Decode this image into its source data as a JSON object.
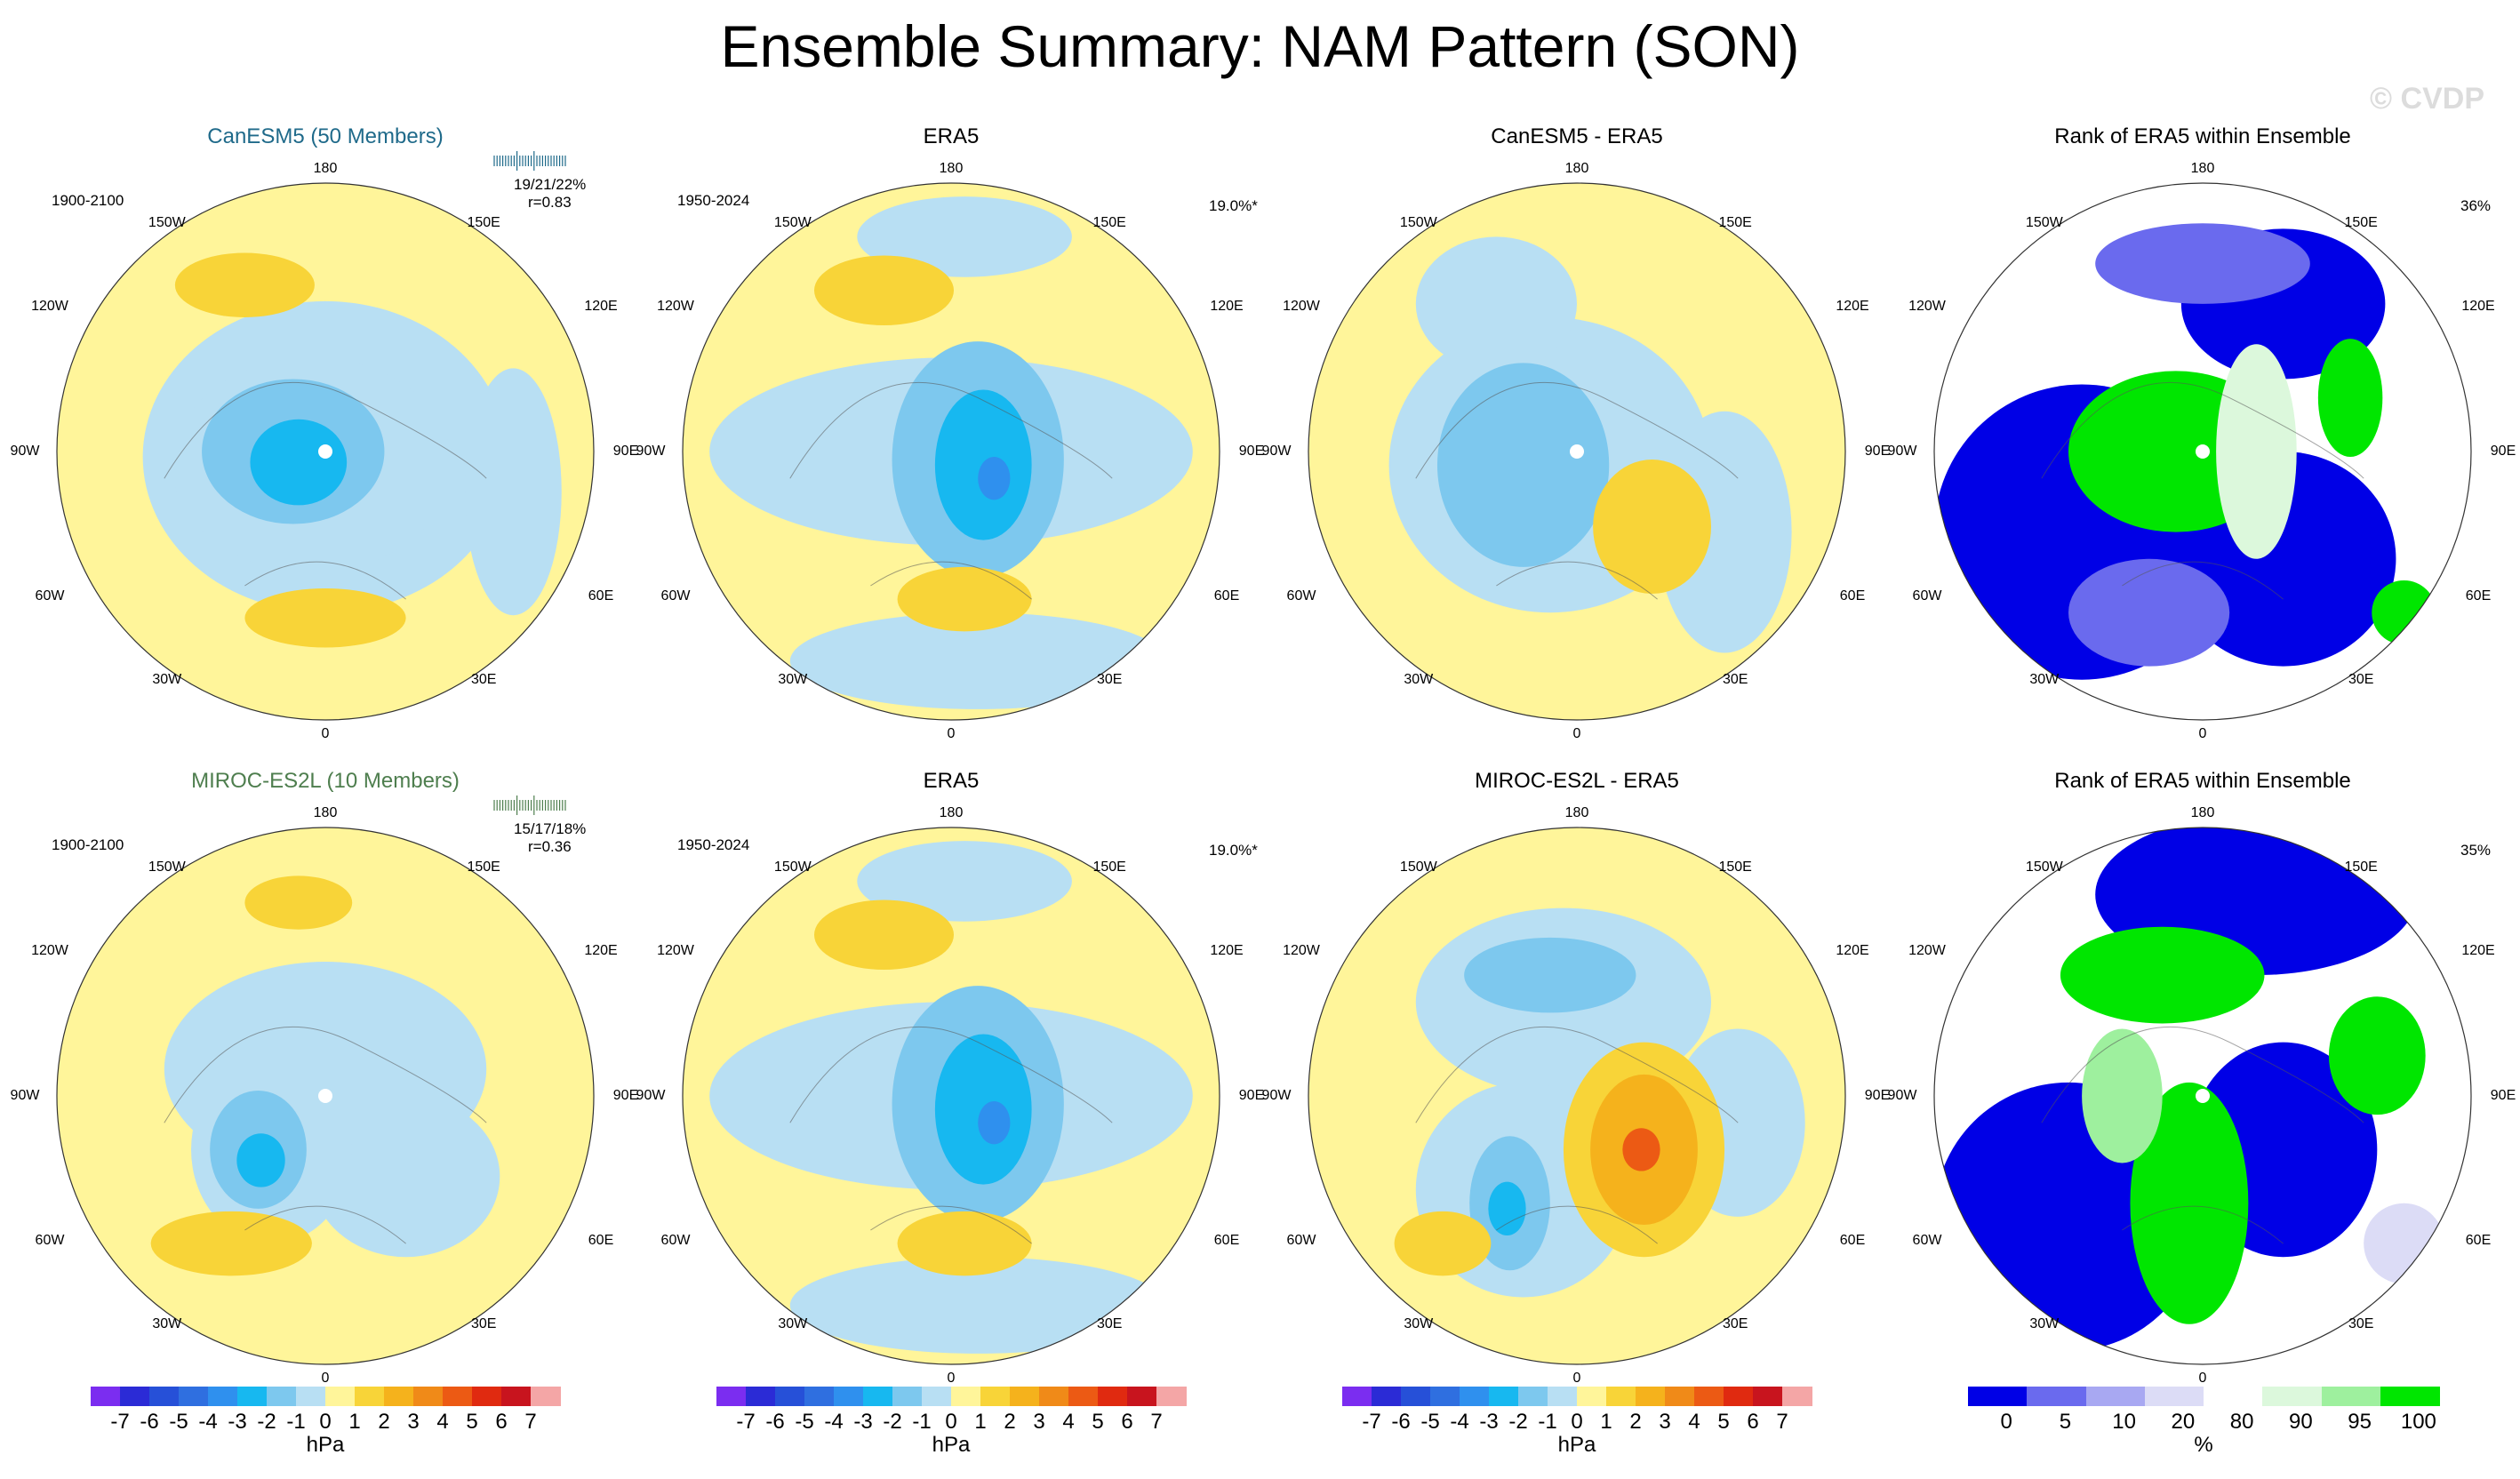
{
  "title": "Ensemble Summary: NAM Pattern (SON)",
  "watermark": "© CVDP",
  "map_labels": {
    "top": "180",
    "bottom": "0",
    "left": "90W",
    "right": "90E",
    "ul": "150W",
    "ur": "150E",
    "ull": "120W",
    "urr": "120E",
    "ll": "60W",
    "lr": "60E",
    "lll": "30W",
    "lrr": "30E"
  },
  "colorbars": {
    "hpa": {
      "unit": "hPa",
      "ticks": [
        "-7",
        "-6",
        "-5",
        "-4",
        "-3",
        "-2",
        "-1",
        "0",
        "1",
        "2",
        "3",
        "4",
        "5",
        "6",
        "7"
      ],
      "colors": [
        "#7b2df0",
        "#2b2bd6",
        "#2650d8",
        "#2f6fe0",
        "#2f90ee",
        "#17b8f0",
        "#7dc8ee",
        "#b8dff3",
        "#fff59a",
        "#f8d438",
        "#f5b21c",
        "#f08a18",
        "#ec5a14",
        "#e02a10",
        "#c8141e",
        "#f4a6a6"
      ]
    },
    "pct": {
      "unit": "%",
      "ticks": [
        "0",
        "5",
        "10",
        "20",
        "80",
        "90",
        "95",
        "100"
      ],
      "colors": [
        "#0000e6",
        "#6a6aee",
        "#a8a8f2",
        "#dcdcf6",
        "#ffffff",
        "#dcf8dc",
        "#9ef09e",
        "#00e600"
      ]
    }
  },
  "panels": [
    {
      "id": "canesm5",
      "title": "CanESM5 (50 Members)",
      "title_color": "#1f6a8a",
      "period": "1900-2100",
      "stats": "19/21/22%",
      "corr": "r=0.83",
      "stats_color": "#1f6a8a"
    },
    {
      "id": "era5-top",
      "title": "ERA5",
      "period": "1950-2024",
      "pct": "19.0%*"
    },
    {
      "id": "canesm5-diff",
      "title": "CanESM5 - ERA5"
    },
    {
      "id": "rank-top",
      "title": "Rank of ERA5 within Ensemble",
      "pct": "36%"
    },
    {
      "id": "miroc",
      "title": "MIROC-ES2L (10 Members)",
      "title_color": "#4e7e4e",
      "period": "1900-2100",
      "stats": "15/17/18%",
      "corr": "r=0.36",
      "stats_color": "#4e7e4e"
    },
    {
      "id": "era5-bottom",
      "title": "ERA5",
      "period": "1950-2024",
      "pct": "19.0%*"
    },
    {
      "id": "miroc-diff",
      "title": "MIROC-ES2L - ERA5"
    },
    {
      "id": "rank-bottom",
      "title": "Rank of ERA5 within Ensemble",
      "pct": "35%"
    }
  ],
  "chart_data": [
    {
      "type": "heatmap",
      "title": "CanESM5 (50 Members)",
      "subtitle": "1900-2100",
      "units": "hPa",
      "range": [
        -7,
        7
      ],
      "features": [
        {
          "name": "Arctic low anomaly",
          "value": -4
        },
        {
          "name": "Pacific high anomaly",
          "value": 2
        },
        {
          "name": "Europe/Atlantic high anomaly",
          "value": 2
        }
      ],
      "annotations": [
        "19/21/22%",
        "r=0.83"
      ]
    },
    {
      "type": "heatmap",
      "title": "ERA5",
      "subtitle": "1950-2024",
      "units": "hPa",
      "range": [
        -7,
        7
      ],
      "features": [
        {
          "name": "Arctic low anomaly",
          "value": -5
        },
        {
          "name": "Pacific high anomaly",
          "value": 2
        },
        {
          "name": "Europe high anomaly",
          "value": 2
        }
      ],
      "annotations": [
        "19.0%*"
      ]
    },
    {
      "type": "heatmap",
      "title": "CanESM5 - ERA5",
      "units": "hPa",
      "range": [
        -7,
        7
      ],
      "features": [
        {
          "name": "Canada/Greenland negative difference",
          "value": -2
        },
        {
          "name": "Siberia positive difference",
          "value": 2
        }
      ]
    },
    {
      "type": "heatmap",
      "title": "Rank of ERA5 within Ensemble",
      "units": "%",
      "categories": [
        "0",
        "5",
        "10",
        "20",
        "80",
        "90",
        "95",
        "100"
      ],
      "annotations": [
        "36%"
      ]
    },
    {
      "type": "heatmap",
      "title": "MIROC-ES2L (10 Members)",
      "subtitle": "1900-2100",
      "units": "hPa",
      "range": [
        -7,
        7
      ],
      "features": [
        {
          "name": "Greenland low anomaly",
          "value": -3
        },
        {
          "name": "Pacific high anomaly",
          "value": 2
        },
        {
          "name": "Atlantic high anomaly",
          "value": 2
        }
      ],
      "annotations": [
        "15/17/18%",
        "r=0.36"
      ]
    },
    {
      "type": "heatmap",
      "title": "ERA5",
      "subtitle": "1950-2024",
      "units": "hPa",
      "range": [
        -7,
        7
      ],
      "features": [
        {
          "name": "Arctic low anomaly",
          "value": -5
        },
        {
          "name": "Pacific high anomaly",
          "value": 2
        },
        {
          "name": "Europe high anomaly",
          "value": 2
        }
      ],
      "annotations": [
        "19.0%*"
      ]
    },
    {
      "type": "heatmap",
      "title": "MIROC-ES2L - ERA5",
      "units": "hPa",
      "range": [
        -7,
        7
      ],
      "features": [
        {
          "name": "Siberia positive difference",
          "value": 5
        },
        {
          "name": "Greenland negative difference",
          "value": -3
        },
        {
          "name": "Pacific negative difference",
          "value": -2
        },
        {
          "name": "Atlantic positive difference",
          "value": 2
        }
      ]
    },
    {
      "type": "heatmap",
      "title": "Rank of ERA5 within Ensemble",
      "units": "%",
      "categories": [
        "0",
        "5",
        "10",
        "20",
        "80",
        "90",
        "95",
        "100"
      ],
      "annotations": [
        "35%"
      ]
    }
  ]
}
